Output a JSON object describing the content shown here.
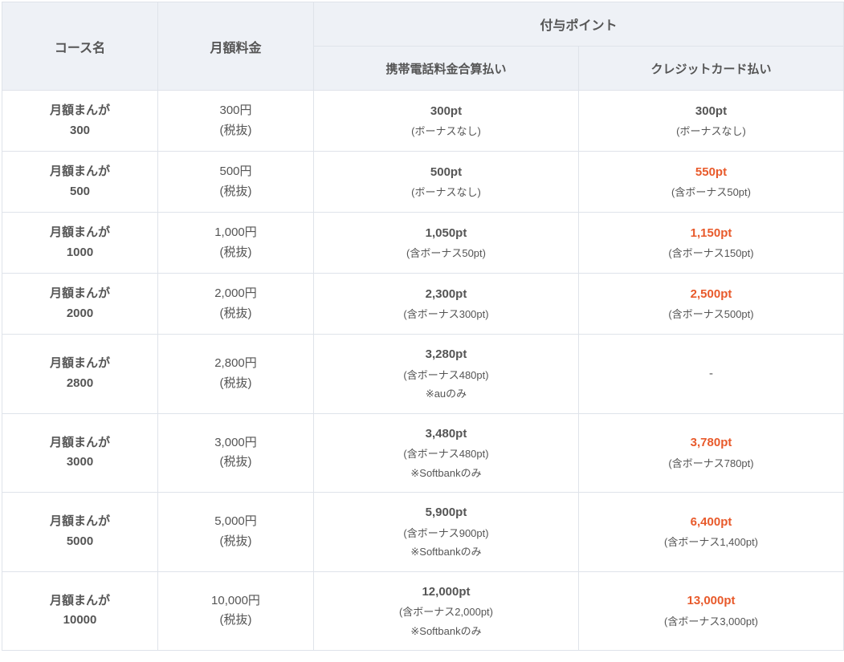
{
  "colors": {
    "header_bg": "#eef1f6",
    "border": "#dfe3ea",
    "text": "#555555",
    "highlight": "#e85a2b",
    "background": "#ffffff"
  },
  "header": {
    "course": "コース名",
    "price": "月額料金",
    "points": "付与ポイント",
    "carrier": "携帯電話料金合算払い",
    "credit": "クレジットカード払い"
  },
  "rows": [
    {
      "course_l1": "月額まんが",
      "course_l2": "300",
      "price_l1": "300円",
      "price_l2": "(税抜)",
      "carrier_pts": "300pt",
      "carrier_bonus": "(ボーナスなし)",
      "carrier_note": "",
      "credit_pts": "300pt",
      "credit_bonus": "(ボーナスなし)",
      "credit_highlight": false,
      "credit_dash": false
    },
    {
      "course_l1": "月額まんが",
      "course_l2": "500",
      "price_l1": "500円",
      "price_l2": "(税抜)",
      "carrier_pts": "500pt",
      "carrier_bonus": "(ボーナスなし)",
      "carrier_note": "",
      "credit_pts": "550pt",
      "credit_bonus": "(含ボーナス50pt)",
      "credit_highlight": true,
      "credit_dash": false
    },
    {
      "course_l1": "月額まんが",
      "course_l2": "1000",
      "price_l1": "1,000円",
      "price_l2": "(税抜)",
      "carrier_pts": "1,050pt",
      "carrier_bonus": "(含ボーナス50pt)",
      "carrier_note": "",
      "credit_pts": "1,150pt",
      "credit_bonus": "(含ボーナス150pt)",
      "credit_highlight": true,
      "credit_dash": false
    },
    {
      "course_l1": "月額まんが",
      "course_l2": "2000",
      "price_l1": "2,000円",
      "price_l2": "(税抜)",
      "carrier_pts": "2,300pt",
      "carrier_bonus": "(含ボーナス300pt)",
      "carrier_note": "",
      "credit_pts": "2,500pt",
      "credit_bonus": "(含ボーナス500pt)",
      "credit_highlight": true,
      "credit_dash": false
    },
    {
      "course_l1": "月額まんが",
      "course_l2": "2800",
      "price_l1": "2,800円",
      "price_l2": "(税抜)",
      "carrier_pts": "3,280pt",
      "carrier_bonus": "(含ボーナス480pt)",
      "carrier_note": "※auのみ",
      "credit_pts": "-",
      "credit_bonus": "",
      "credit_highlight": false,
      "credit_dash": true
    },
    {
      "course_l1": "月額まんが",
      "course_l2": "3000",
      "price_l1": "3,000円",
      "price_l2": "(税抜)",
      "carrier_pts": "3,480pt",
      "carrier_bonus": "(含ボーナス480pt)",
      "carrier_note": "※Softbankのみ",
      "credit_pts": "3,780pt",
      "credit_bonus": "(含ボーナス780pt)",
      "credit_highlight": true,
      "credit_dash": false
    },
    {
      "course_l1": "月額まんが",
      "course_l2": "5000",
      "price_l1": "5,000円",
      "price_l2": "(税抜)",
      "carrier_pts": "5,900pt",
      "carrier_bonus": "(含ボーナス900pt)",
      "carrier_note": "※Softbankのみ",
      "credit_pts": "6,400pt",
      "credit_bonus": "(含ボーナス1,400pt)",
      "credit_highlight": true,
      "credit_dash": false
    },
    {
      "course_l1": "月額まんが",
      "course_l2": "10000",
      "price_l1": "10,000円",
      "price_l2": "(税抜)",
      "carrier_pts": "12,000pt",
      "carrier_bonus": "(含ボーナス2,000pt)",
      "carrier_note": "※Softbankのみ",
      "credit_pts": "13,000pt",
      "credit_bonus": "(含ボーナス3,000pt)",
      "credit_highlight": true,
      "credit_dash": false
    }
  ]
}
